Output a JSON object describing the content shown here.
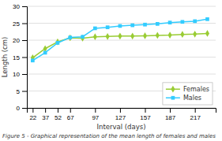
{
  "chart_data": {
    "type": "line",
    "xlabel": "Interval (days)",
    "ylabel": "Length (cm)",
    "caption": "Figure 5 - Graphical representation of the mean length of females and males",
    "x": [
      22,
      37,
      52,
      67,
      82,
      97,
      112,
      127,
      142,
      157,
      172,
      187,
      202,
      217,
      232
    ],
    "series": [
      {
        "name": "Females",
        "color": "#99cc33",
        "marker": "diamond",
        "line_style": "solid",
        "values": [
          14.8,
          17.5,
          19.5,
          20.7,
          20.6,
          21.0,
          21.1,
          21.2,
          21.2,
          21.3,
          21.4,
          21.5,
          21.7,
          21.8,
          22.0
        ]
      },
      {
        "name": "Males",
        "color": "#33ccff",
        "marker": "square",
        "line_style": "solid",
        "values": [
          14.0,
          16.3,
          19.2,
          20.8,
          21.0,
          23.5,
          23.8,
          24.2,
          24.4,
          24.6,
          24.8,
          25.2,
          25.4,
          25.6,
          26.2
        ]
      }
    ],
    "xlim": [
      15,
      242
    ],
    "xticks": [
      22,
      37,
      52,
      67,
      97,
      127,
      157,
      187,
      217
    ],
    "ylim": [
      0,
      30
    ],
    "yticks": [
      0,
      5,
      10,
      15,
      20,
      25,
      30
    ],
    "grid": true,
    "legend": "lower right"
  }
}
